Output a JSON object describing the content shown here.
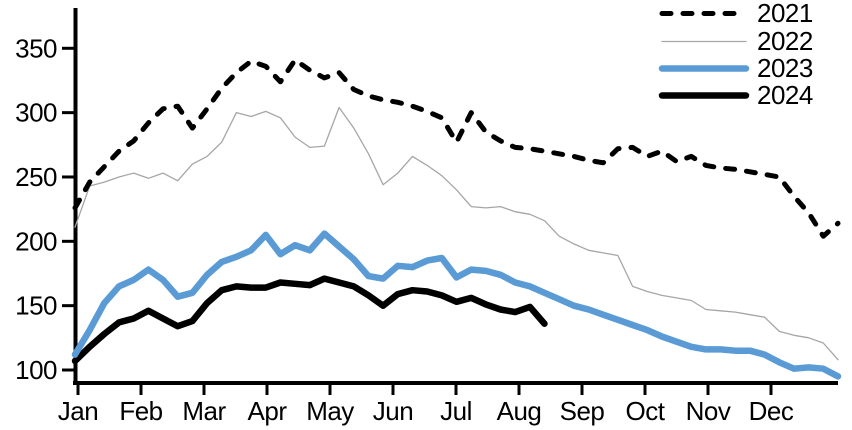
{
  "chart_data": {
    "type": "line",
    "title": "",
    "x_description": "weekly observations across one calendar year",
    "x_axis": {
      "tick_labels": [
        "Jan",
        "Feb",
        "Mar",
        "Apr",
        "May",
        "Jun",
        "Jul",
        "Aug",
        "Sep",
        "Oct",
        "Nov",
        "Dec"
      ]
    },
    "y_axis": {
      "min": 100,
      "max": 350,
      "tick_interval": 50,
      "ticks": [
        100,
        150,
        200,
        250,
        300,
        350
      ],
      "tick_labels": [
        "100",
        "150",
        "200",
        "250",
        "300",
        "350"
      ],
      "grid": false
    },
    "legend_position": "top-right",
    "series": [
      {
        "name": "2021",
        "color": "#000000",
        "style": "dashed",
        "width": 5,
        "values": [
          226,
          246,
          258,
          270,
          278,
          292,
          303,
          305,
          288,
          303,
          319,
          331,
          340,
          336,
          324,
          341,
          333,
          327,
          331,
          318,
          313,
          310,
          308,
          305,
          301,
          296,
          277,
          300,
          285,
          278,
          273,
          272,
          270,
          268,
          266,
          263,
          261,
          272,
          273,
          266,
          270,
          262,
          266,
          259,
          257,
          256,
          254,
          252,
          250,
          235,
          222,
          204,
          214
        ]
      },
      {
        "name": "2022",
        "color": "#A6A6A6",
        "style": "solid",
        "width": 1.3,
        "values": [
          211,
          243,
          246,
          250,
          253,
          249,
          253,
          247,
          260,
          266,
          277,
          300,
          297,
          301,
          296,
          281,
          273,
          274,
          304,
          288,
          268,
          244,
          253,
          266,
          259,
          251,
          240,
          227,
          226,
          227,
          223,
          221,
          216,
          204,
          198,
          193,
          191,
          189,
          165,
          161,
          158,
          156,
          154,
          147,
          146,
          145,
          143,
          141,
          130,
          127,
          125,
          121,
          108
        ]
      },
      {
        "name": "2023",
        "color": "#5B9BD5",
        "style": "solid",
        "width": 6.5,
        "values": [
          112,
          131,
          152,
          165,
          170,
          178,
          170,
          157,
          160,
          174,
          184,
          188,
          193,
          205,
          190,
          197,
          193,
          206,
          196,
          186,
          173,
          171,
          181,
          180,
          185,
          187,
          172,
          178,
          177,
          174,
          168,
          165,
          160,
          155,
          150,
          147,
          143,
          139,
          135,
          131,
          126,
          122,
          118,
          116,
          116,
          115,
          115,
          112,
          106,
          101,
          102,
          101,
          95
        ]
      },
      {
        "name": "2024",
        "color": "#000000",
        "style": "solid",
        "width": 6.5,
        "values": [
          107,
          118,
          128,
          137,
          140,
          146,
          140,
          134,
          138,
          152,
          162,
          165,
          164,
          164,
          168,
          167,
          166,
          171,
          168,
          165,
          158,
          150,
          159,
          162,
          161,
          158,
          153,
          156,
          151,
          147,
          145,
          149,
          136
        ]
      }
    ]
  }
}
